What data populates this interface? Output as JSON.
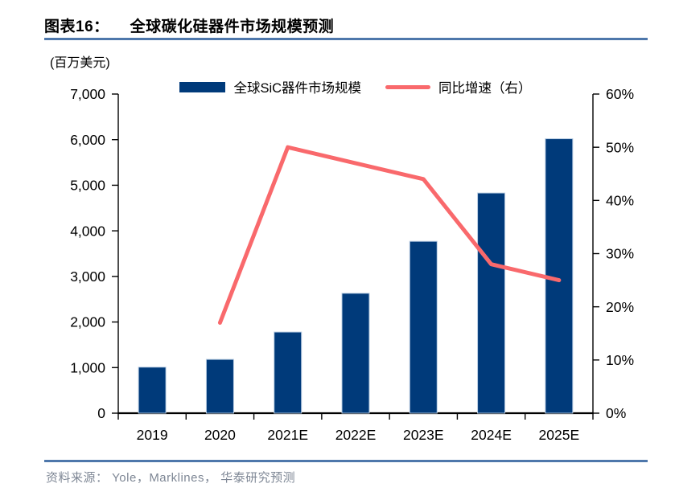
{
  "header": {
    "figure_label": "图表16：",
    "title": "全球碳化硅器件市场规模预测",
    "unit_label": "(百万美元)"
  },
  "legend": [
    {
      "label": "全球SiC器件市场规模",
      "type": "bar",
      "color": "#003a7a"
    },
    {
      "label": "同比增速（右）",
      "type": "line",
      "color": "#f9696c"
    }
  ],
  "chart_data": {
    "type": "bar",
    "title": "全球碳化硅器件市场规模预测",
    "categories": [
      "2019",
      "2020",
      "2021E",
      "2022E",
      "2023E",
      "2024E",
      "2025E"
    ],
    "series": [
      {
        "name": "全球SiC器件市场规模",
        "type": "bar",
        "axis": "left",
        "color": "#003a7a",
        "values": [
          1010,
          1180,
          1780,
          2630,
          3770,
          4830,
          6020
        ]
      },
      {
        "name": "同比增速（右）",
        "type": "line",
        "axis": "right",
        "color": "#f9696c",
        "values": [
          null,
          17,
          50,
          47,
          44,
          28,
          25
        ]
      }
    ],
    "xlabel": "",
    "ylabel_left": "(百万美元)",
    "ylabel_right": "%",
    "left_axis": {
      "min": 0,
      "max": 7000,
      "step": 1000
    },
    "right_axis": {
      "min": 0,
      "max": 60,
      "step": 10,
      "suffix": "%"
    },
    "grid": false,
    "legend_position": "top-center"
  },
  "colors": {
    "bar_fill": "#003a7a",
    "bar_border": "#b9cde3",
    "line": "#f9696c",
    "rule": "#4e77ab",
    "axis": "#000000",
    "source_text": "#7e8795"
  },
  "footer": {
    "source": "资料来源： Yole，Marklines， 华泰研究预测"
  }
}
